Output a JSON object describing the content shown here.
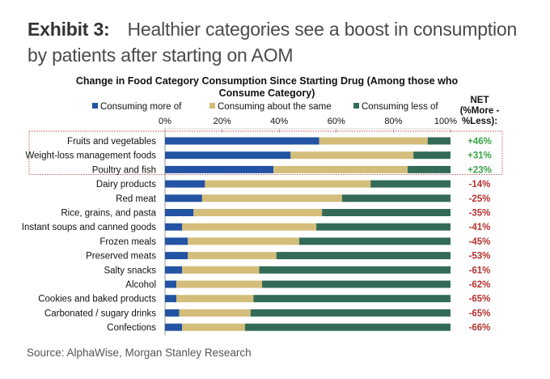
{
  "exhibit": {
    "label": "Exhibit 3:",
    "title": "Healthier categories see a boost in consumption by patients after starting on AOM"
  },
  "source": "Source: AlphaWise, Morgan Stanley Research",
  "colors": {
    "more": "#2353a3",
    "same": "#d4bd7a",
    "less": "#336b57",
    "positive": "#3aa24a",
    "negative": "#b5322f",
    "highlight_border": "#c0504d",
    "axis": "#999999"
  },
  "chart_data": {
    "type": "bar",
    "orientation": "horizontal",
    "stacked": true,
    "title_lines": [
      "Change in Food Category Consumption Since Starting Drug (Among those who",
      "Consume Category)"
    ],
    "xlabel": "",
    "ylabel": "",
    "xlim": [
      0,
      100
    ],
    "x_ticks": [
      "0%",
      "20%",
      "40%",
      "60%",
      "80%",
      "100%"
    ],
    "legend_position": "top",
    "categories": [
      "Fruits and vegetables",
      "Weight-loss management foods",
      "Poultry and fish",
      "Dairy products",
      "Red meat",
      "Rice, grains, and pasta",
      "Instant soups and canned goods",
      "Frozen meals",
      "Preserved meats",
      "Salty snacks",
      "Alcohol",
      "Cookies and baked products",
      "Carbonated / sugary drinks",
      "Confections"
    ],
    "series": [
      {
        "name": "Consuming more of",
        "key": "more",
        "values": [
          54,
          44,
          38,
          14,
          13,
          10,
          6,
          8,
          8,
          6,
          4,
          4,
          5,
          6
        ]
      },
      {
        "name": "Consuming about the same",
        "key": "same",
        "values": [
          38,
          43,
          47,
          58,
          49,
          45,
          47,
          39,
          31,
          27,
          30,
          27,
          25,
          22
        ]
      },
      {
        "name": "Consuming less of",
        "key": "less",
        "values": [
          8,
          13,
          15,
          28,
          38,
          45,
          47,
          53,
          61,
          67,
          66,
          69,
          70,
          72
        ]
      }
    ],
    "net": {
      "header_lines": [
        "NET",
        "(%More -",
        "%Less):"
      ],
      "labels": [
        "+46%",
        "+31%",
        "+23%",
        "-14%",
        "-25%",
        "-35%",
        "-41%",
        "-45%",
        "-53%",
        "-61%",
        "-62%",
        "-65%",
        "-65%",
        "-66%"
      ],
      "values": [
        46,
        31,
        23,
        -14,
        -25,
        -35,
        -41,
        -45,
        -53,
        -61,
        -62,
        -65,
        -65,
        -66
      ]
    },
    "highlighted_categories": [
      "Fruits and vegetables",
      "Weight-loss management foods",
      "Poultry and fish"
    ]
  }
}
